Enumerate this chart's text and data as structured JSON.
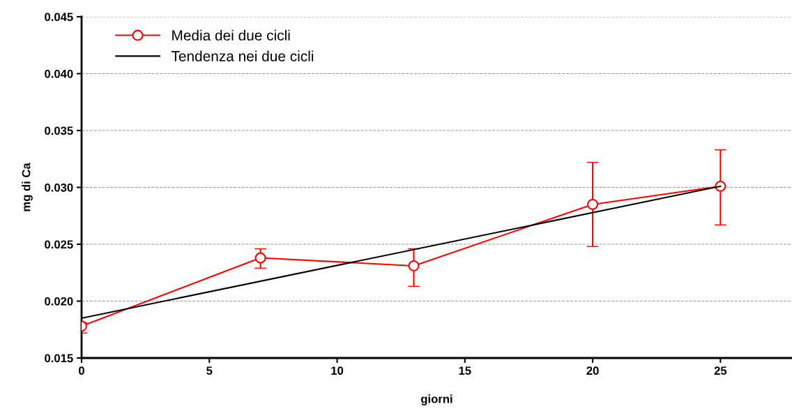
{
  "chart_data": {
    "type": "line",
    "xlabel": "giorni",
    "ylabel": "mg di Ca",
    "xlim": [
      0,
      27.8
    ],
    "xticks": [
      0,
      5,
      10,
      15,
      20,
      25
    ],
    "ylim": [
      0.015,
      0.045
    ],
    "yticks": [
      {
        "value": 0.015,
        "label": "0.015"
      },
      {
        "value": 0.02,
        "label": "0.020"
      },
      {
        "value": 0.025,
        "label": "0.025"
      },
      {
        "value": 0.03,
        "label": "0.030"
      },
      {
        "value": 0.035,
        "label": "0.035"
      },
      {
        "value": 0.04,
        "label": "0.040"
      },
      {
        "value": 0.045,
        "label": "0.045"
      }
    ],
    "grid": "y",
    "legend": "top left",
    "series": [
      {
        "name": "Media dei due cicli",
        "color": "#ff0000",
        "x": [
          0,
          7,
          13,
          20,
          25
        ],
        "values": [
          0.0178,
          0.0238,
          0.0231,
          0.0285,
          0.0301
        ],
        "errors": [
          [
            0.0172,
            0.0181
          ],
          [
            0.0229,
            0.0246
          ],
          [
            0.0213,
            0.0246
          ],
          [
            0.0248,
            0.0322
          ],
          [
            0.0267,
            0.0333
          ]
        ],
        "marker": "circle",
        "line_style": "solid"
      },
      {
        "name": "Tendenza nei due cicli",
        "color": "#000000",
        "x": [
          0,
          25
        ],
        "values": [
          0.0185,
          0.0301
        ],
        "marker": "none",
        "line_style": "solid"
      }
    ]
  }
}
